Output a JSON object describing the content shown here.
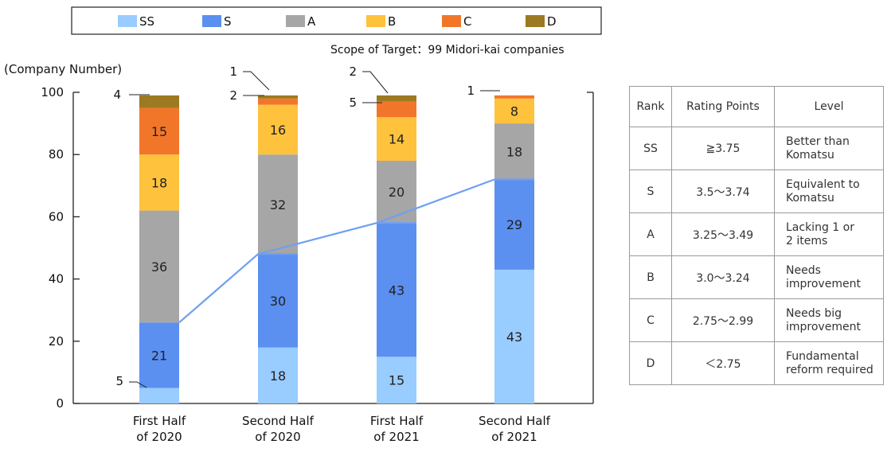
{
  "legend": [
    {
      "key": "SS",
      "label": "SS",
      "color": "#99ccff"
    },
    {
      "key": "S",
      "label": "S",
      "color": "#5b8ff0"
    },
    {
      "key": "A",
      "label": "A",
      "color": "#a6a6a6"
    },
    {
      "key": "B",
      "label": "B",
      "color": "#ffc23d"
    },
    {
      "key": "C",
      "label": "C",
      "color": "#f2762a"
    },
    {
      "key": "D",
      "label": "D",
      "color": "#9c7a22"
    }
  ],
  "note": "Scope of Target：99 Midori-kai companies",
  "chart_data": {
    "type": "bar",
    "stacked": true,
    "ylabel": "(Company Number)",
    "ylim": [
      0,
      100
    ],
    "yticks": [
      0,
      20,
      40,
      60,
      80,
      100
    ],
    "categories": [
      [
        "First Half",
        "of 2020"
      ],
      [
        "Second Half",
        "of 2020"
      ],
      [
        "First Half",
        "of 2021"
      ],
      [
        "Second Half",
        "of 2021"
      ]
    ],
    "series": [
      {
        "name": "SS",
        "color": "#99ccff",
        "values": [
          5,
          18,
          15,
          43
        ],
        "labels": [
          "5",
          "18",
          "15",
          "43"
        ]
      },
      {
        "name": "S",
        "color": "#5b8ff0",
        "values": [
          21,
          30,
          43,
          29
        ],
        "labels": [
          "21",
          "30",
          "43",
          "29"
        ]
      },
      {
        "name": "A",
        "color": "#a6a6a6",
        "values": [
          36,
          32,
          20,
          18
        ],
        "labels": [
          "36",
          "32",
          "20",
          "18"
        ]
      },
      {
        "name": "B",
        "color": "#ffc23d",
        "values": [
          18,
          16,
          14,
          8
        ],
        "labels": [
          "18",
          "16",
          "14",
          "8"
        ]
      },
      {
        "name": "C",
        "color": "#f2762a",
        "values": [
          15,
          2,
          5,
          1
        ],
        "labels": [
          "15",
          "2",
          "5",
          "1"
        ]
      },
      {
        "name": "D",
        "color": "#9c7a22",
        "values": [
          4,
          1,
          2,
          0
        ],
        "labels": [
          "4",
          "1",
          "2",
          ""
        ]
      }
    ],
    "callout_labels": [
      [
        "5",
        "",
        "",
        "",
        "",
        "4"
      ],
      [
        "",
        "",
        "",
        "",
        "2",
        "1"
      ],
      [
        "",
        "",
        "",
        "",
        "5",
        "2"
      ],
      [
        "",
        "",
        "",
        "",
        "1",
        ""
      ]
    ],
    "trend_line": {
      "color": "#6f9ff0",
      "values": [
        26,
        48,
        58,
        72
      ]
    },
    "grid": false
  },
  "table": {
    "headers": [
      "Rank",
      "Rating Points",
      "Level"
    ],
    "rows": [
      {
        "rank": "SS",
        "points": "≧3.75",
        "level": [
          "Better than",
          "Komatsu"
        ]
      },
      {
        "rank": "S",
        "points": "3.5～3.74",
        "level": [
          "Equivalent to",
          "Komatsu"
        ]
      },
      {
        "rank": "A",
        "points": "3.25～3.49",
        "level": [
          "Lacking 1 or",
          "2 items"
        ]
      },
      {
        "rank": "B",
        "points": "3.0～3.24",
        "level": [
          "Needs",
          "improvement"
        ]
      },
      {
        "rank": "C",
        "points": "2.75～2.99",
        "level": [
          "Needs big",
          "improvement"
        ]
      },
      {
        "rank": "D",
        "points": "＜2.75",
        "level": [
          "Fundamental",
          "reform required"
        ]
      }
    ]
  }
}
